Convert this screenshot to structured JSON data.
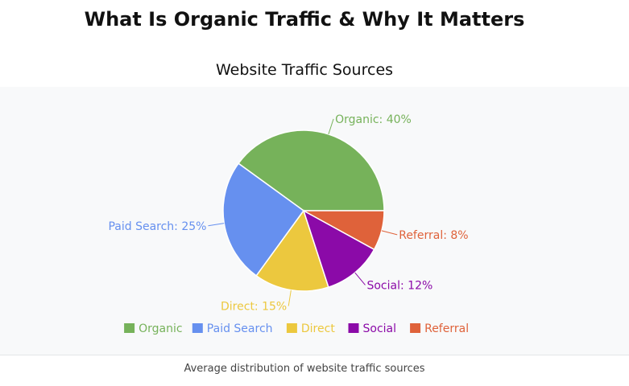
{
  "page": {
    "title": "What Is Organic Traffic & Why It Matters",
    "caption": "Average distribution of website traffic sources"
  },
  "chart_data": {
    "type": "pie",
    "title": "Website Traffic Sources",
    "categories": [
      "Organic",
      "Paid Search",
      "Direct",
      "Social",
      "Referral"
    ],
    "values": [
      40,
      25,
      15,
      12,
      8
    ],
    "colors": [
      "#76b25a",
      "#6690ef",
      "#ecc83e",
      "#8b0aa8",
      "#df623a"
    ],
    "slice_labels": [
      "Organic: 40%",
      "Paid Search: 25%",
      "Direct: 15%",
      "Social: 12%",
      "Referral: 8%"
    ],
    "start_angle_deg": 0,
    "direction": "counterclockwise",
    "legend_position": "bottom"
  }
}
